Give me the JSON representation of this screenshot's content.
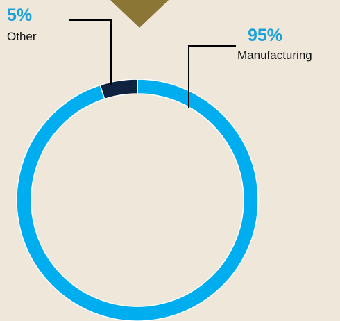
{
  "chart_data": {
    "type": "pie",
    "style": "donut",
    "slices": [
      {
        "label": "Manufacturing",
        "value": 95,
        "percent_label": "95%",
        "color": "#00AEEF"
      },
      {
        "label": "Other",
        "value": 5,
        "percent_label": "5%",
        "color": "#0F2340"
      }
    ],
    "percent_label_color": "#1BA1D9",
    "category_label_color": "#111111",
    "leader_line_color": "#000000",
    "accent_marker_color": "#8B7635",
    "background": "#EEE7DA"
  }
}
